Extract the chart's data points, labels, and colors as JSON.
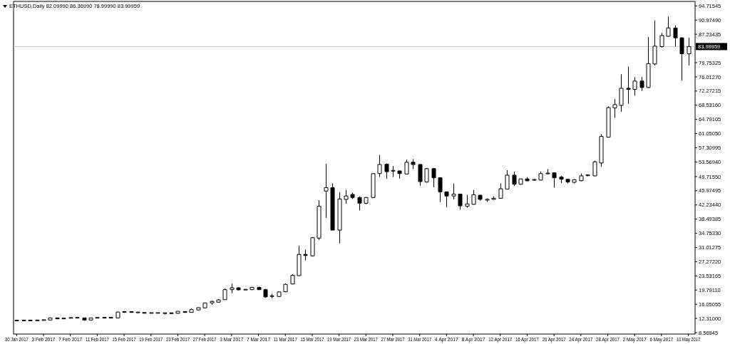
{
  "chart_data": {
    "type": "candlestick",
    "title": "ETHUSD,Daily 82.09990 86.36990 78.99990 83.99959",
    "x": [
      "2017-01-30",
      "2017-01-31",
      "2017-02-01",
      "2017-02-02",
      "2017-02-03",
      "2017-02-04",
      "2017-02-05",
      "2017-02-06",
      "2017-02-07",
      "2017-02-08",
      "2017-02-09",
      "2017-02-10",
      "2017-02-11",
      "2017-02-12",
      "2017-02-13",
      "2017-02-14",
      "2017-02-15",
      "2017-02-16",
      "2017-02-17",
      "2017-02-18",
      "2017-02-19",
      "2017-02-20",
      "2017-02-21",
      "2017-02-22",
      "2017-02-23",
      "2017-02-24",
      "2017-02-25",
      "2017-02-26",
      "2017-02-27",
      "2017-02-28",
      "2017-03-01",
      "2017-03-02",
      "2017-03-03",
      "2017-03-04",
      "2017-03-05",
      "2017-03-06",
      "2017-03-07",
      "2017-03-08",
      "2017-03-09",
      "2017-03-10",
      "2017-03-11",
      "2017-03-12",
      "2017-03-13",
      "2017-03-14",
      "2017-03-15",
      "2017-03-16",
      "2017-03-17",
      "2017-03-18",
      "2017-03-19",
      "2017-03-20",
      "2017-03-21",
      "2017-03-22",
      "2017-03-23",
      "2017-03-24",
      "2017-03-25",
      "2017-03-26",
      "2017-03-27",
      "2017-03-28",
      "2017-03-29",
      "2017-03-30",
      "2017-03-31",
      "2017-04-01",
      "2017-04-02",
      "2017-04-03",
      "2017-04-04",
      "2017-04-05",
      "2017-04-06",
      "2017-04-07",
      "2017-04-08",
      "2017-04-09",
      "2017-04-10",
      "2017-04-11",
      "2017-04-12",
      "2017-04-13",
      "2017-04-14",
      "2017-04-15",
      "2017-04-16",
      "2017-04-17",
      "2017-04-18",
      "2017-04-19",
      "2017-04-20",
      "2017-04-21",
      "2017-04-22",
      "2017-04-23",
      "2017-04-24",
      "2017-04-25",
      "2017-04-26",
      "2017-04-27",
      "2017-04-28",
      "2017-04-29",
      "2017-04-30",
      "2017-05-01",
      "2017-05-02",
      "2017-05-03",
      "2017-05-04",
      "2017-05-05",
      "2017-05-06",
      "2017-05-07",
      "2017-05-08",
      "2017-05-09",
      "2017-05-10"
    ],
    "ohlc": [
      [
        11.75,
        11.85,
        11.6,
        11.75
      ],
      [
        11.75,
        11.85,
        11.65,
        11.8
      ],
      [
        11.8,
        11.9,
        11.6,
        11.75
      ],
      [
        11.75,
        11.9,
        11.7,
        11.85
      ],
      [
        11.85,
        11.95,
        11.75,
        11.9
      ],
      [
        11.9,
        12.55,
        11.85,
        12.45
      ],
      [
        12.45,
        12.5,
        12.15,
        12.2
      ],
      [
        12.2,
        12.45,
        12.15,
        12.4
      ],
      [
        12.4,
        12.7,
        12.35,
        12.5
      ],
      [
        12.5,
        12.7,
        12.4,
        12.5
      ],
      [
        12.45,
        12.5,
        11.7,
        11.9
      ],
      [
        11.9,
        12.5,
        11.85,
        12.45
      ],
      [
        12.45,
        12.6,
        12.4,
        12.5
      ],
      [
        12.5,
        12.6,
        12.4,
        12.5
      ],
      [
        12.5,
        12.6,
        12.4,
        12.5
      ],
      [
        12.45,
        14.05,
        12.4,
        14.0
      ],
      [
        14.0,
        14.25,
        13.8,
        14.05
      ],
      [
        14.1,
        14.2,
        13.85,
        13.9
      ],
      [
        13.9,
        14.05,
        13.8,
        13.9
      ],
      [
        13.8,
        13.9,
        13.7,
        13.75
      ],
      [
        13.75,
        13.85,
        13.65,
        13.75
      ],
      [
        13.75,
        13.85,
        13.65,
        13.75
      ],
      [
        13.7,
        13.8,
        13.35,
        13.7
      ],
      [
        13.75,
        13.8,
        13.6,
        13.65
      ],
      [
        13.65,
        14.2,
        13.6,
        14.2
      ],
      [
        14.1,
        14.2,
        13.85,
        13.9
      ],
      [
        13.9,
        15.0,
        13.85,
        14.65
      ],
      [
        14.55,
        15.2,
        14.5,
        15.15
      ],
      [
        15.1,
        16.45,
        15.05,
        16.4
      ],
      [
        16.4,
        17.0,
        15.9,
        16.8
      ],
      [
        16.6,
        17.4,
        16.5,
        17.2
      ],
      [
        17.25,
        20.2,
        17.2,
        19.9
      ],
      [
        19.9,
        21.5,
        19.0,
        20.4
      ],
      [
        20.4,
        20.5,
        19.7,
        19.85
      ],
      [
        19.9,
        20.0,
        19.8,
        19.9
      ],
      [
        19.9,
        20.7,
        19.8,
        20.5
      ],
      [
        20.5,
        20.7,
        19.8,
        19.9
      ],
      [
        19.9,
        20.1,
        17.8,
        18.0
      ],
      [
        18.2,
        18.8,
        17.6,
        18.2
      ],
      [
        18.1,
        19.4,
        18.0,
        19.3
      ],
      [
        19.35,
        21.5,
        19.2,
        21.3
      ],
      [
        21.4,
        24.0,
        21.3,
        23.65
      ],
      [
        23.6,
        31.5,
        23.5,
        29.2
      ],
      [
        29.2,
        30.5,
        27.6,
        28.9
      ],
      [
        28.8,
        33.8,
        28.6,
        33.6
      ],
      [
        33.5,
        43.5,
        33.0,
        41.9
      ],
      [
        45.9,
        53.1,
        38.8,
        46.8
      ],
      [
        46.8,
        47.9,
        35.6,
        35.6
      ],
      [
        35.6,
        45.6,
        32.1,
        43.8
      ],
      [
        43.7,
        46.2,
        42.6,
        44.6
      ],
      [
        45.0,
        45.5,
        43.8,
        44.2
      ],
      [
        44.2,
        44.5,
        40.8,
        42.7
      ],
      [
        42.7,
        44.3,
        42.4,
        44.2
      ],
      [
        44.2,
        50.6,
        44.1,
        50.5
      ],
      [
        50.5,
        55.4,
        49.6,
        52.9
      ],
      [
        53.0,
        53.2,
        49.1,
        51.0
      ],
      [
        51.2,
        52.5,
        49.6,
        51.3
      ],
      [
        51.2,
        51.3,
        49.2,
        50.5
      ],
      [
        50.4,
        54.2,
        50.3,
        53.5
      ],
      [
        53.5,
        54.3,
        51.7,
        52.9
      ],
      [
        52.9,
        53.0,
        47.3,
        48.4
      ],
      [
        48.3,
        52.0,
        48.1,
        51.8
      ],
      [
        51.8,
        52.0,
        46.9,
        49.4
      ],
      [
        49.4,
        49.5,
        43.0,
        45.7
      ],
      [
        45.7,
        45.8,
        41.6,
        44.6
      ],
      [
        44.6,
        47.9,
        43.7,
        45.1
      ],
      [
        45.1,
        45.2,
        41.0,
        42.0
      ],
      [
        41.9,
        44.9,
        41.5,
        42.5
      ],
      [
        42.4,
        46.2,
        42.3,
        44.9
      ],
      [
        44.8,
        44.9,
        43.3,
        43.7
      ],
      [
        43.6,
        44.0,
        43.0,
        43.6
      ],
      [
        43.7,
        44.5,
        43.6,
        44.0
      ],
      [
        44.0,
        47.9,
        43.9,
        46.5
      ],
      [
        46.4,
        51.4,
        46.3,
        50.1
      ],
      [
        50.1,
        51.0,
        47.2,
        47.7
      ],
      [
        47.7,
        49.1,
        47.6,
        49.1
      ],
      [
        49.1,
        49.6,
        48.5,
        48.6
      ],
      [
        48.8,
        49.1,
        48.6,
        48.9
      ],
      [
        48.8,
        51.1,
        48.7,
        50.5
      ],
      [
        50.5,
        51.7,
        50.3,
        50.6
      ],
      [
        50.7,
        50.8,
        46.8,
        49.4
      ],
      [
        49.6,
        49.9,
        48.0,
        49.0
      ],
      [
        49.0,
        49.1,
        47.9,
        48.3
      ],
      [
        48.2,
        49.0,
        47.9,
        48.9
      ],
      [
        48.6,
        50.5,
        48.5,
        49.9
      ],
      [
        50.0,
        50.3,
        49.8,
        50.1
      ],
      [
        49.9,
        53.9,
        49.8,
        53.6
      ],
      [
        53.3,
        60.9,
        52.3,
        60.3
      ],
      [
        60.1,
        68.2,
        60.0,
        67.9
      ],
      [
        67.8,
        70.1,
        65.2,
        68.7
      ],
      [
        68.5,
        76.7,
        66.8,
        73.0
      ],
      [
        73.0,
        78.7,
        68.9,
        72.7
      ],
      [
        72.7,
        75.9,
        71.1,
        74.9
      ],
      [
        74.9,
        76.0,
        72.3,
        73.2
      ],
      [
        73.2,
        86.5,
        73.1,
        79.5
      ],
      [
        79.4,
        90.9,
        79.0,
        84.1
      ],
      [
        84.0,
        87.6,
        83.7,
        86.9
      ],
      [
        86.7,
        91.9,
        86.6,
        88.9
      ],
      [
        88.9,
        89.6,
        84.0,
        86.3
      ],
      [
        86.3,
        86.4,
        75.1,
        82.1
      ],
      [
        82.0999,
        86.3699,
        78.9999,
        83.99959
      ]
    ],
    "xlim": [
      "2017-01-29T13:00",
      "2017-05-11T00:00"
    ],
    "xticks": [
      {
        "value": "2017-01-30",
        "label": "30 Jan 2017"
      },
      {
        "value": "2017-02-03",
        "label": "3 Feb 2017"
      },
      {
        "value": "2017-02-07",
        "label": "7 Feb 2017"
      },
      {
        "value": "2017-02-11",
        "label": "11 Feb 2017"
      },
      {
        "value": "2017-02-15",
        "label": "15 Feb 2017"
      },
      {
        "value": "2017-02-19",
        "label": "19 Feb 2017"
      },
      {
        "value": "2017-02-23",
        "label": "23 Feb 2017"
      },
      {
        "value": "2017-02-27",
        "label": "27 Feb 2017"
      },
      {
        "value": "2017-03-03",
        "label": "3 Mar 2017"
      },
      {
        "value": "2017-03-07",
        "label": "7 Mar 2017"
      },
      {
        "value": "2017-03-11",
        "label": "11 Mar 2017"
      },
      {
        "value": "2017-03-15",
        "label": "15 Mar 2017"
      },
      {
        "value": "2017-03-19",
        "label": "19 Mar 2017"
      },
      {
        "value": "2017-03-23",
        "label": "23 Mar 2017"
      },
      {
        "value": "2017-03-27",
        "label": "27 Mar 2017"
      },
      {
        "value": "2017-03-31",
        "label": "31 Mar 2017"
      },
      {
        "value": "2017-04-04",
        "label": "4 Apr 2017"
      },
      {
        "value": "2017-04-08",
        "label": "8 Apr 2017"
      },
      {
        "value": "2017-04-12",
        "label": "12 Apr 2017"
      },
      {
        "value": "2017-04-16",
        "label": "16 Apr 2017"
      },
      {
        "value": "2017-04-20",
        "label": "20 Apr 2017"
      },
      {
        "value": "2017-04-24",
        "label": "24 Apr 2017"
      },
      {
        "value": "2017-04-28",
        "label": "28 Apr 2017"
      },
      {
        "value": "2017-05-02",
        "label": "2 May 2017"
      },
      {
        "value": "2017-05-06",
        "label": "6 May 2017"
      },
      {
        "value": "2017-05-10",
        "label": "10 May 2017"
      }
    ],
    "ylim": [
      8.2,
      95.9
    ],
    "yticks": [
      94.71545,
      {
        "value": 90.9749,
        "label": "90.97490"
      },
      87.23435,
      79.75325,
      {
        "value": 76.0127,
        "label": "76.01270"
      },
      72.27215,
      {
        "value": 68.5316,
        "label": "68.53160"
      },
      64.79105,
      {
        "value": 61.0505,
        "label": "61.05050"
      },
      57.30995,
      {
        "value": 53.5694,
        "label": "53.56940"
      },
      {
        "value": 49.7155,
        "label": "49.71550"
      },
      45.97495,
      {
        "value": 42.2344,
        "label": "42.23440"
      },
      38.49385,
      {
        "value": 34.7533,
        "label": "34.75330"
      },
      31.01275,
      {
        "value": 27.2722,
        "label": "27.27220"
      },
      23.53165,
      {
        "value": 19.7911,
        "label": "19.79110"
      },
      16.05055,
      {
        "value": 12.31,
        "label": "12.31000"
      },
      8.56945
    ],
    "ref_lines": [
      {
        "axis": "y",
        "value": 83.99959,
        "label": "83.99959",
        "color": "#c8c8c8"
      }
    ]
  }
}
